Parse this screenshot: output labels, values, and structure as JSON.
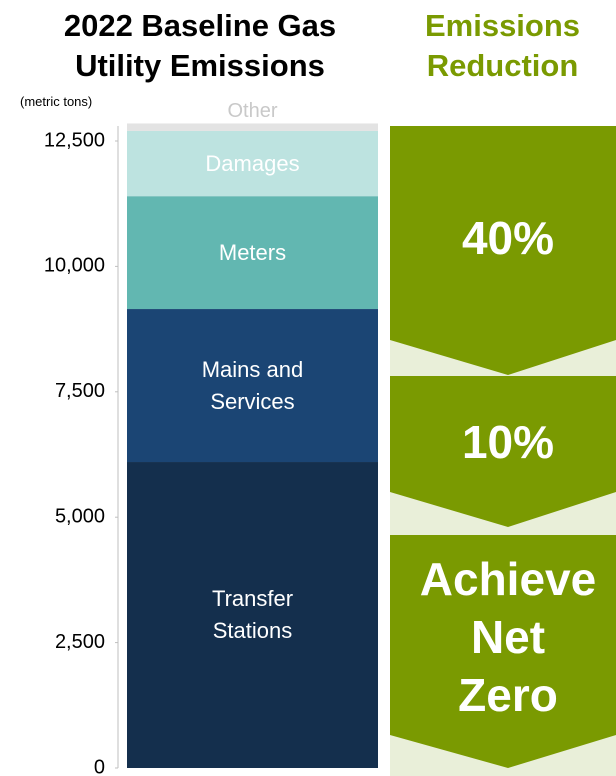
{
  "chart_data": {
    "type": "stacked_bar",
    "title": "2022 Baseline Gas Utility Emissions",
    "y_label": "(metric tons)",
    "categories": [
      "2022 Baseline"
    ],
    "series": [
      {
        "name": "Transfer Stations",
        "color": "#142f4d",
        "values": [
          6100
        ]
      },
      {
        "name": "Mains and Services",
        "color": "#1b4574",
        "values": [
          3050
        ]
      },
      {
        "name": "Meters",
        "color": "#62b7b1",
        "values": [
          2250
        ]
      },
      {
        "name": "Damages",
        "color": "#bde3e0",
        "values": [
          1300
        ]
      },
      {
        "name": "Other",
        "color": "#e3e3e3",
        "values": [
          150
        ]
      }
    ],
    "ylim": [
      0,
      12500
    ],
    "yticks": [
      0,
      {
        "value": 2500,
        "label": "2,500"
      },
      {
        "value": 5000,
        "label": "5,000"
      },
      {
        "value": 7500,
        "label": "7,500"
      },
      {
        "value": 10000,
        "label": "10,000"
      },
      {
        "value": 12500,
        "label": "12,500"
      }
    ],
    "reduction_title": "Emissions Reduction",
    "reduction_targets": [
      "40%",
      "10%",
      "Achieve Net Zero"
    ],
    "reduction_color": "#7a9a01"
  }
}
